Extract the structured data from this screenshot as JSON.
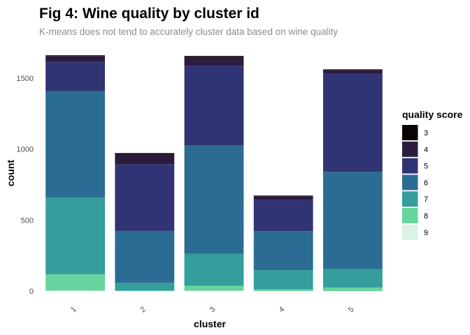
{
  "chart_data": {
    "type": "bar",
    "stacked": true,
    "title": "Fig 4: Wine quality by cluster id",
    "subtitle": "K-means does not tend to accurately cluster data based on wine quality",
    "xlabel": "cluster",
    "ylabel": "count",
    "categories": [
      "1",
      "2",
      "3",
      "4",
      "5"
    ],
    "ylim": [
      0,
      1700
    ],
    "yticks": [
      0,
      500,
      1000,
      1500
    ],
    "grid": false,
    "legend": {
      "title": "quality score",
      "position": "right"
    },
    "series": [
      {
        "name": "3",
        "color": "#0b0405",
        "values": [
          5,
          8,
          8,
          5,
          4
        ]
      },
      {
        "name": "4",
        "color": "#2b1c3e",
        "values": [
          42,
          70,
          60,
          25,
          27
        ]
      },
      {
        "name": "5",
        "color": "#303475",
        "values": [
          205,
          470,
          560,
          220,
          690
        ]
      },
      {
        "name": "6",
        "color": "#2b6c94",
        "values": [
          750,
          365,
          765,
          275,
          685
        ]
      },
      {
        "name": "7",
        "color": "#349e9c",
        "values": [
          540,
          55,
          225,
          135,
          130
        ]
      },
      {
        "name": "8",
        "color": "#67d49e",
        "values": [
          115,
          3,
          35,
          12,
          25
        ]
      },
      {
        "name": "9",
        "color": "#daf4e3",
        "values": [
          3,
          0,
          2,
          0,
          0
        ]
      }
    ]
  }
}
